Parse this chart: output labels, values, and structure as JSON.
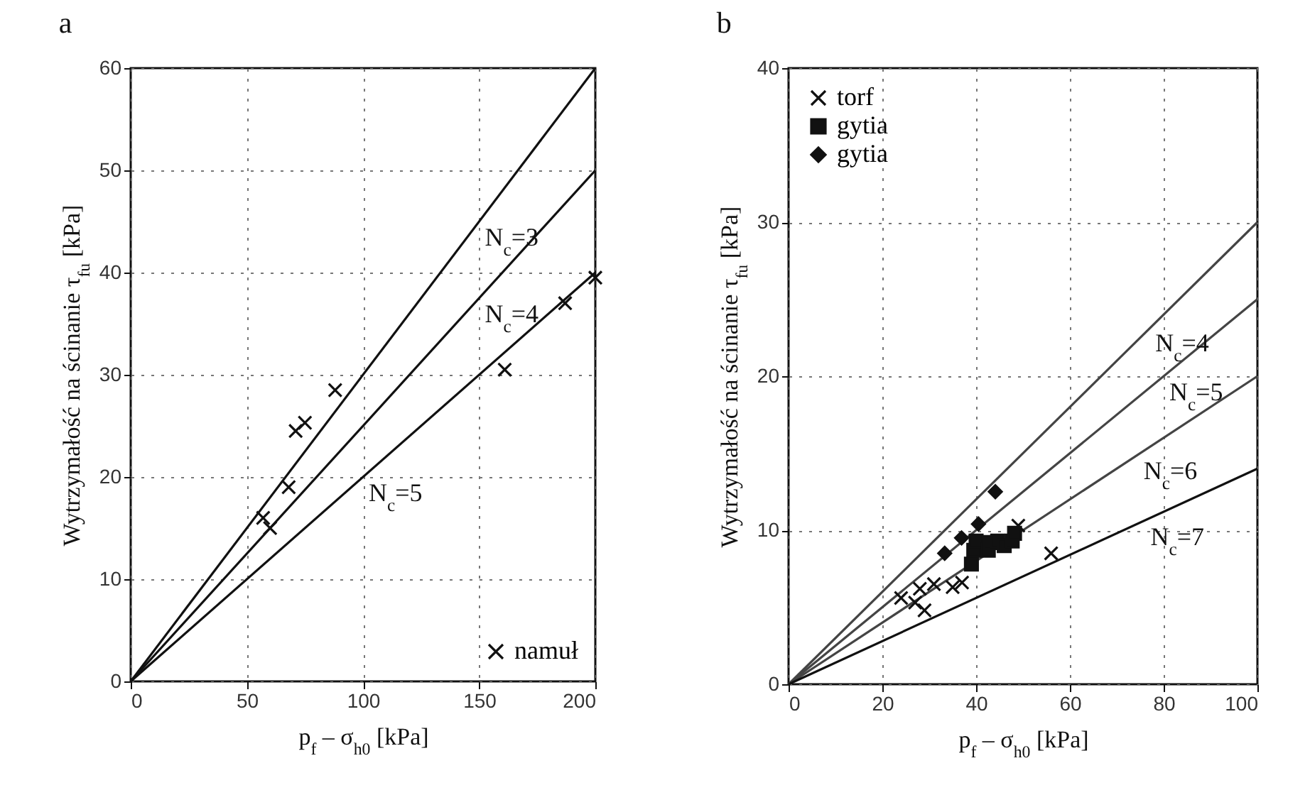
{
  "chart_data": [
    {
      "type": "scatter",
      "title": "a",
      "xlabel": "p$_{f}$ – σ$_{h0}$ [kPa]",
      "ylabel": "Wytrzymałość na ścinanie τ$_{fu}$ [kPa]",
      "xlim": [
        0,
        200
      ],
      "xticks": [
        0,
        50,
        100,
        150,
        200
      ],
      "ylim": [
        0,
        60
      ],
      "yticks": [
        0,
        10,
        20,
        30,
        40,
        50,
        60
      ],
      "grid": true,
      "legend": "bottom right",
      "series": [
        {
          "name": "namuł",
          "color": "#111111",
          "marker": "cross",
          "x": [
            57,
            60,
            68,
            71,
            75,
            88,
            161,
            187,
            200
          ],
          "values": [
            16,
            15,
            19,
            24.5,
            25.3,
            28.5,
            30.5,
            37,
            39.5
          ]
        },
        {
          "type": "line",
          "color": "#111111",
          "x": [
            0,
            200
          ],
          "values": [
            0,
            60
          ]
        },
        {
          "type": "line",
          "color": "#111111",
          "x": [
            0,
            200
          ],
          "values": [
            0,
            50
          ]
        },
        {
          "type": "line",
          "color": "#111111",
          "x": [
            0,
            200
          ],
          "values": [
            0,
            40
          ]
        }
      ],
      "annotations": [
        {
          "text": "N$_{c}$=3",
          "x": 150,
          "y": 45
        },
        {
          "text": "N$_{c}$=4",
          "x": 150,
          "y": 37.5
        },
        {
          "text": "N$_{c}$=5",
          "x": 100,
          "y": 20
        }
      ]
    },
    {
      "type": "scatter",
      "title": "b",
      "xlabel": "p$_{f}$ – σ$_{h0}$ [kPa]",
      "ylabel": "Wytrzymałość na ścinanie τ$_{fu}$ [kPa]",
      "xlim": [
        0,
        100
      ],
      "xticks": [
        0,
        20,
        40,
        60,
        80,
        100
      ],
      "ylim": [
        0,
        40
      ],
      "yticks": [
        0,
        10,
        20,
        30,
        40
      ],
      "grid": true,
      "legend": "top left",
      "series": [
        {
          "name": "torf",
          "color": "#111111",
          "marker": "cross",
          "x": [
            24,
            27,
            28,
            29,
            31,
            35,
            37,
            49,
            56
          ],
          "values": [
            5.6,
            5.3,
            6.2,
            4.8,
            6.5,
            6.3,
            6.6,
            10.3,
            8.5
          ]
        },
        {
          "name": "gytia",
          "color": "#111111",
          "marker": "square",
          "x": [
            39,
            39.5,
            40,
            42.6,
            43,
            44.6,
            46,
            47.7,
            48.2
          ],
          "values": [
            7.8,
            8.7,
            9.3,
            8.7,
            9.2,
            9.3,
            9,
            9.3,
            9.8
          ]
        },
        {
          "name": "gytia",
          "color": "#111111",
          "marker": "diamond",
          "x": [
            33.3,
            36.9,
            40.5,
            44.1
          ],
          "values": [
            8.5,
            9.5,
            10.4,
            12.5
          ]
        },
        {
          "type": "line",
          "color": "#444444",
          "x": [
            0,
            100
          ],
          "values": [
            0,
            30
          ]
        },
        {
          "type": "line",
          "color": "#444444",
          "x": [
            0,
            100
          ],
          "values": [
            0,
            25
          ]
        },
        {
          "type": "line",
          "color": "#444444",
          "x": [
            0,
            100
          ],
          "values": [
            0,
            20
          ]
        },
        {
          "type": "line",
          "color": "#111111",
          "x": [
            0,
            100
          ],
          "values": [
            0,
            14
          ]
        }
      ],
      "annotations": [
        {
          "text": "N$_{c}$=4",
          "x": 77,
          "y": 23.2
        },
        {
          "text": "N$_{c}$=5",
          "x": 80,
          "y": 20
        },
        {
          "text": "N$_{c}$=6",
          "x": 74.5,
          "y": 14.9
        },
        {
          "text": "N$_{c}$=7",
          "x": 76,
          "y": 10.6
        }
      ]
    }
  ]
}
